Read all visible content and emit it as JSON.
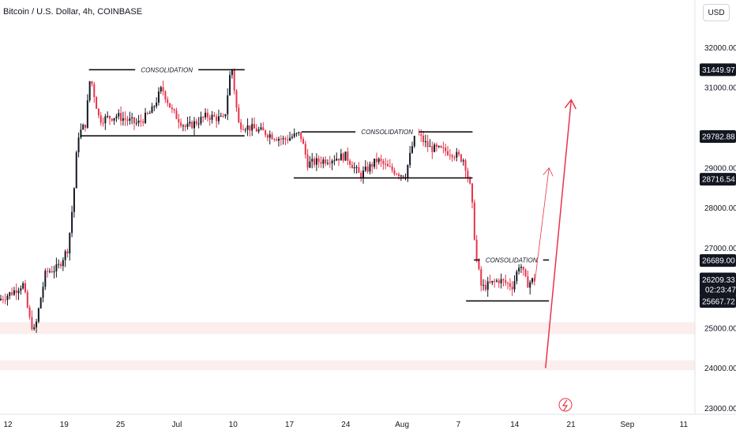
{
  "header": {
    "title": "Bitcoin / U.S. Dollar, 4h, COINBASE",
    "currency_button": "USD"
  },
  "colors": {
    "up": "#131722",
    "down": "#e8334a",
    "support_zone": "#fdeeee",
    "arrow": "#e8334a",
    "line": "#000000"
  },
  "chart_data": {
    "type": "candlestick",
    "ylim": [
      22850,
      32600
    ],
    "y_ticks": [
      {
        "value": 32000,
        "label": "32000.00"
      },
      {
        "value": 31000,
        "label": "31000.00"
      },
      {
        "value": 29000,
        "label": "29000.00"
      },
      {
        "value": 28000,
        "label": "28000.00"
      },
      {
        "value": 27000,
        "label": "27000.00"
      },
      {
        "value": 25000,
        "label": "25000.00"
      },
      {
        "value": 24000,
        "label": "24000.00"
      },
      {
        "value": 23000,
        "label": "23000.00"
      }
    ],
    "x_ticks": [
      "12",
      "19",
      "25",
      "Jul",
      "10",
      "17",
      "24",
      "Aug",
      "7",
      "14",
      "21",
      "Sep",
      "11"
    ],
    "price_labels": [
      {
        "value": 31449.97,
        "label": "31449.97",
        "style": "dark"
      },
      {
        "value": 29782.88,
        "label": "29782.88",
        "style": "dark"
      },
      {
        "value": 28716.54,
        "label": "28716.54",
        "style": "dark"
      },
      {
        "value": 26689.0,
        "label": "26689.00",
        "style": "dark"
      },
      {
        "value": 26209.33,
        "label": "26209.33",
        "style": "current",
        "countdown": "02:23:47"
      },
      {
        "value": 25667.72,
        "label": "25667.72",
        "style": "dark"
      }
    ],
    "annotations": [
      {
        "text": "CONSOLIDATION",
        "top": 31450,
        "bottom": 29800,
        "x_start": 0.128,
        "x_end": 0.352
      },
      {
        "text": "CONSOLIDATION",
        "top": 29900,
        "bottom": 28750,
        "x_start": 0.434,
        "x_end": 0.68
      },
      {
        "text": "CONSOLIDATION",
        "top": 26700,
        "bottom": 25680,
        "x_start": 0.682,
        "x_end": 0.79
      }
    ],
    "support_zones": [
      {
        "top": 25150,
        "bottom": 24850
      },
      {
        "top": 24200,
        "bottom": 23950
      }
    ],
    "price_path": [
      [
        0.0,
        25700
      ],
      [
        0.02,
        25900
      ],
      [
        0.035,
        26100
      ],
      [
        0.045,
        25200
      ],
      [
        0.052,
        24900
      ],
      [
        0.06,
        25700
      ],
      [
        0.068,
        26400
      ],
      [
        0.085,
        26500
      ],
      [
        0.1,
        27000
      ],
      [
        0.108,
        28300
      ],
      [
        0.114,
        29800
      ],
      [
        0.125,
        30100
      ],
      [
        0.132,
        31300
      ],
      [
        0.145,
        30200
      ],
      [
        0.17,
        30300
      ],
      [
        0.2,
        30100
      ],
      [
        0.22,
        30400
      ],
      [
        0.235,
        31000
      ],
      [
        0.25,
        30400
      ],
      [
        0.27,
        30000
      ],
      [
        0.3,
        30300
      ],
      [
        0.325,
        30200
      ],
      [
        0.335,
        31600
      ],
      [
        0.345,
        30100
      ],
      [
        0.38,
        29900
      ],
      [
        0.41,
        29700
      ],
      [
        0.434,
        29850
      ],
      [
        0.445,
        29100
      ],
      [
        0.47,
        29200
      ],
      [
        0.5,
        29300
      ],
      [
        0.52,
        28800
      ],
      [
        0.545,
        29200
      ],
      [
        0.56,
        29000
      ],
      [
        0.585,
        28800
      ],
      [
        0.592,
        29300
      ],
      [
        0.6,
        29900
      ],
      [
        0.62,
        29500
      ],
      [
        0.65,
        29400
      ],
      [
        0.67,
        29200
      ],
      [
        0.68,
        28400
      ],
      [
        0.687,
        26800
      ],
      [
        0.695,
        26000
      ],
      [
        0.72,
        26200
      ],
      [
        0.74,
        26050
      ],
      [
        0.75,
        26650
      ],
      [
        0.76,
        26100
      ],
      [
        0.77,
        26210
      ]
    ],
    "projection": {
      "small_arrow": {
        "from": [
          0.77,
          26210
        ],
        "to": [
          0.79,
          29000
        ]
      },
      "large_arrow": {
        "from": [
          0.785,
          24000
        ],
        "to": [
          0.822,
          30700
        ]
      }
    }
  }
}
